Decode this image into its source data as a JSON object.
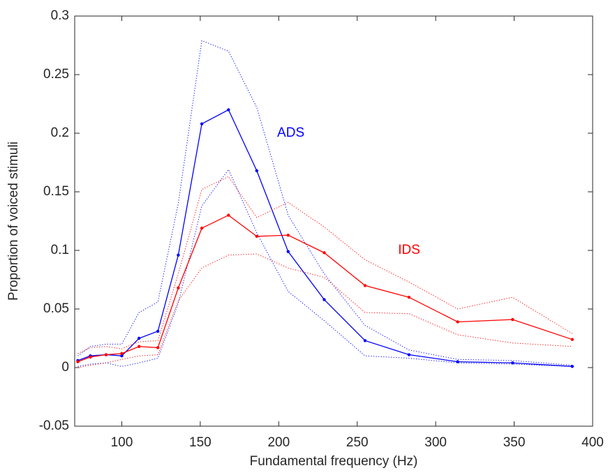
{
  "chart_data": {
    "type": "line",
    "xlabel": "Fundamental frequency (Hz)",
    "ylabel": "Proportion of voiced stimuli",
    "x": [
      72,
      80,
      90,
      100,
      111,
      123,
      136,
      151,
      168,
      186,
      206,
      229,
      255,
      283,
      314,
      349,
      387
    ],
    "series": [
      {
        "name": "ADS",
        "color": "#0000ff",
        "values": [
          0.006,
          0.01,
          0.011,
          0.01,
          0.025,
          0.031,
          0.096,
          0.208,
          0.22,
          0.168,
          0.099,
          0.058,
          0.023,
          0.011,
          0.005,
          0.004,
          0.001
        ],
        "upper": [
          0.01,
          0.018,
          0.02,
          0.02,
          0.047,
          0.056,
          0.14,
          0.279,
          0.27,
          0.222,
          0.13,
          0.08,
          0.036,
          0.015,
          0.007,
          0.006,
          0.002
        ],
        "lower": [
          0.001,
          0.003,
          0.004,
          0.001,
          0.004,
          0.008,
          0.055,
          0.138,
          0.169,
          0.115,
          0.065,
          0.04,
          0.01,
          0.008,
          0.004,
          0.003,
          0.001
        ]
      },
      {
        "name": "IDS",
        "color": "#ff0000",
        "values": [
          0.005,
          0.009,
          0.011,
          0.012,
          0.018,
          0.017,
          0.068,
          0.119,
          0.13,
          0.112,
          0.113,
          0.098,
          0.07,
          0.06,
          0.039,
          0.041,
          0.024
        ],
        "upper": [
          0.012,
          0.017,
          0.018,
          0.016,
          0.022,
          0.023,
          0.08,
          0.152,
          0.163,
          0.128,
          0.141,
          0.12,
          0.092,
          0.073,
          0.05,
          0.06,
          0.029
        ],
        "lower": [
          0.0,
          0.002,
          0.004,
          0.007,
          0.01,
          0.011,
          0.057,
          0.085,
          0.096,
          0.097,
          0.085,
          0.077,
          0.047,
          0.046,
          0.028,
          0.021,
          0.018
        ]
      }
    ],
    "xlim": [
      70,
      400
    ],
    "xticks": [
      100,
      150,
      200,
      250,
      300,
      350,
      400
    ],
    "ylim": [
      -0.05,
      0.3
    ],
    "yticks": [
      -0.05,
      0,
      0.05,
      0.1,
      0.15,
      0.2,
      0.25,
      0.3
    ]
  }
}
